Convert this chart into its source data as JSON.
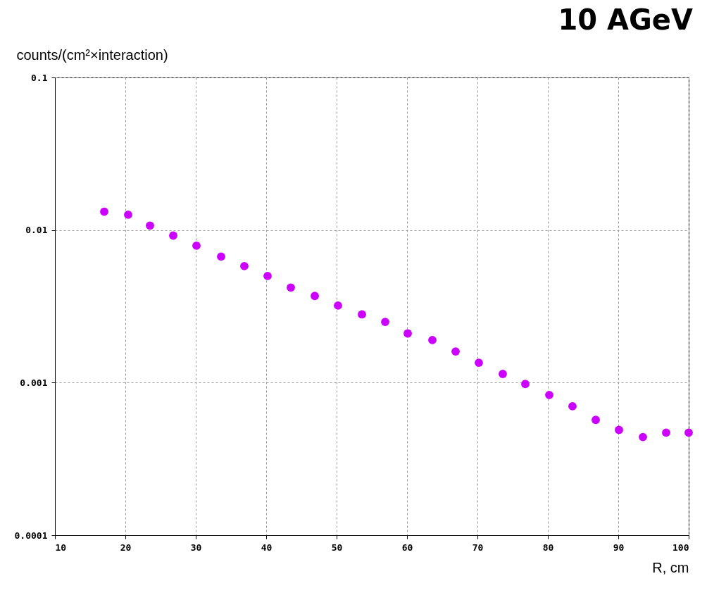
{
  "chart_data": {
    "type": "scatter",
    "title": "10 AGeV",
    "xlabel": "R, cm",
    "ylabel": "counts/(cm²×interaction)",
    "x": [
      17,
      20.4,
      23.5,
      26.8,
      30.1,
      33.6,
      36.9,
      40.2,
      43.5,
      46.9,
      50.2,
      53.6,
      56.9,
      60.1,
      63.6,
      66.9,
      70.2,
      73.6,
      76.8,
      80.2,
      83.5,
      86.8,
      90.1,
      93.5,
      96.8,
      100
    ],
    "series": [
      {
        "color": "#cc00ff",
        "values": [
          0.0132,
          0.0126,
          0.0107,
          0.0092,
          0.0079,
          0.0067,
          0.0058,
          0.005,
          0.0042,
          0.0037,
          0.0032,
          0.0028,
          0.0025,
          0.0021,
          0.0019,
          0.0016,
          0.00135,
          0.00114,
          0.00098,
          0.00083,
          0.0007,
          0.00057,
          0.00049,
          0.00044,
          0.00047,
          0.00047
        ]
      }
    ],
    "xlim": [
      10,
      100
    ],
    "xticks": [
      10,
      20,
      30,
      40,
      50,
      60,
      70,
      80,
      90,
      100
    ],
    "ylim": [
      0.0001,
      0.1
    ],
    "yticks": [
      0.0001,
      0.001,
      0.01,
      0.1
    ],
    "log": "y",
    "grid": true,
    "marker": "circle"
  }
}
